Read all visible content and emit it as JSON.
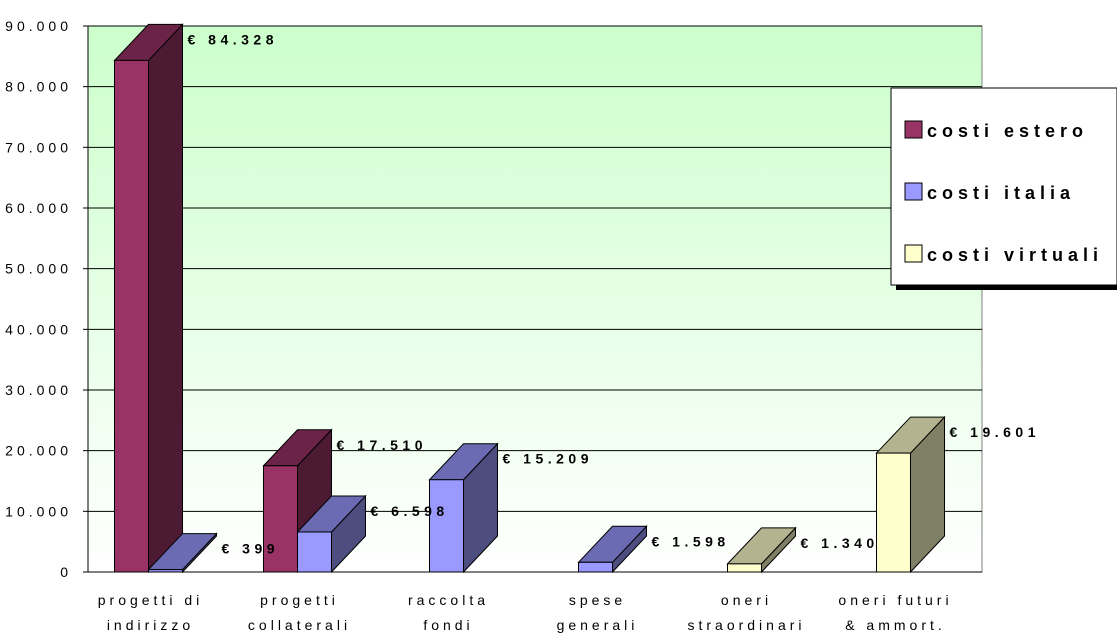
{
  "chart_data": {
    "type": "bar",
    "title": "",
    "xlabel": "",
    "ylabel": "",
    "ylim": [
      0,
      90000
    ],
    "yticks": [
      0,
      10000,
      20000,
      30000,
      40000,
      50000,
      60000,
      70000,
      80000,
      90000
    ],
    "ytick_labels": [
      "0",
      "10.000",
      "20.000",
      "30.000",
      "40.000",
      "50.000",
      "60.000",
      "70.000",
      "80.000",
      "90.000"
    ],
    "grid": true,
    "three_d": true,
    "legend_position": "right",
    "categories": [
      [
        "progetti di",
        "indirizzo"
      ],
      [
        "progetti",
        "collaterali"
      ],
      [
        "raccolta",
        "fondi"
      ],
      [
        "spese",
        "generali"
      ],
      [
        "oneri",
        "straordinari"
      ],
      [
        "oneri futuri",
        "& ammort."
      ]
    ],
    "series": [
      {
        "name": "costi estero",
        "color": "#993366",
        "values": [
          84328,
          17510,
          null,
          null,
          null,
          null
        ],
        "labels": [
          "€ 84.328",
          "€ 17.510",
          "",
          "",
          "",
          ""
        ]
      },
      {
        "name": "costi italia",
        "color": "#9999ff",
        "values": [
          399,
          6598,
          15209,
          1598,
          null,
          null
        ],
        "labels": [
          "€ 399",
          "€ 6.598",
          "€ 15.209",
          "€ 1.598",
          "",
          ""
        ]
      },
      {
        "name": "costi virtuali",
        "color": "#ffffcc",
        "values": [
          null,
          null,
          null,
          null,
          1340,
          19601
        ],
        "labels": [
          "",
          "",
          "",
          "",
          "€ 1.340",
          "€ 19.601"
        ]
      }
    ],
    "plot_background": [
      "#ccffcc",
      "#ffffff"
    ]
  }
}
